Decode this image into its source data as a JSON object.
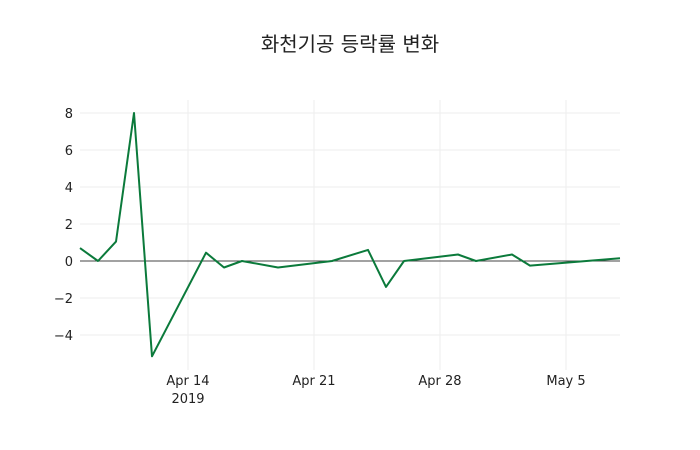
{
  "chart_data": {
    "type": "line",
    "title": "화천기공 등락률 변화",
    "xlabel": "",
    "ylabel": "",
    "x": [
      "2019-04-08",
      "2019-04-09",
      "2019-04-10",
      "2019-04-11",
      "2019-04-12",
      "2019-04-15",
      "2019-04-16",
      "2019-04-17",
      "2019-04-19",
      "2019-04-22",
      "2019-04-24",
      "2019-04-25",
      "2019-04-26",
      "2019-04-29",
      "2019-04-30",
      "2019-05-02",
      "2019-05-03",
      "2019-05-08"
    ],
    "series": [
      {
        "name": "등락률",
        "color": "#0b7a3b",
        "values": [
          0.7,
          0.0,
          1.05,
          8.0,
          -5.15,
          0.45,
          -0.35,
          0.0,
          -0.35,
          0.0,
          0.6,
          -1.4,
          0.0,
          0.35,
          0.0,
          0.35,
          -0.25,
          0.15
        ]
      }
    ],
    "y_ticks": [
      8,
      6,
      4,
      2,
      0,
      -2,
      -4
    ],
    "y_tick_labels": [
      "8",
      "6",
      "4",
      "2",
      "0",
      "−2",
      "−4"
    ],
    "x_ticks": [
      {
        "date": "2019-04-14",
        "label": "Apr 14",
        "sublabel": "2019"
      },
      {
        "date": "2019-04-21",
        "label": "Apr 21",
        "sublabel": ""
      },
      {
        "date": "2019-04-28",
        "label": "Apr 28",
        "sublabel": ""
      },
      {
        "date": "2019-05-05",
        "label": "May 5",
        "sublabel": ""
      }
    ],
    "ylim": [
      -5.6,
      8.6
    ],
    "grid": true,
    "zero_line": true
  }
}
